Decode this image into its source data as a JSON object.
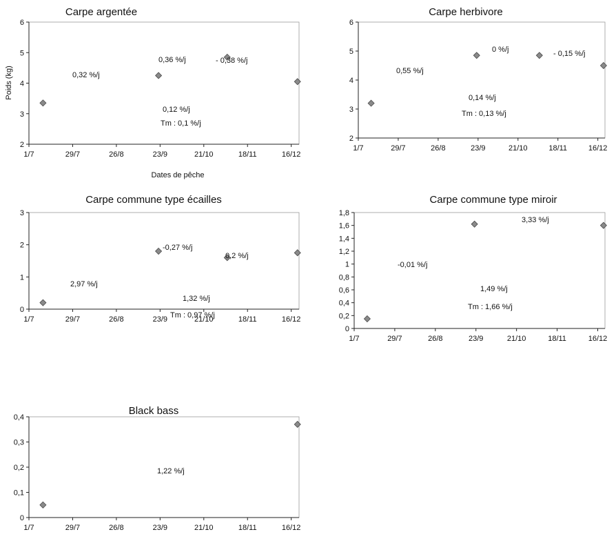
{
  "chart_data": [
    {
      "type": "scatter",
      "title": "Carpe argentée",
      "xlabel": "Dates de pêche",
      "ylabel": "Poids (kg)",
      "x_ticks": [
        "1/7",
        "29/7",
        "26/8",
        "23/9",
        "21/10",
        "18/11",
        "16/12"
      ],
      "y_ticks": [
        "2",
        "3",
        "4",
        "5",
        "6"
      ],
      "ylim": [
        2,
        6
      ],
      "series": [
        {
          "x": [
            "10/7",
            "22/9",
            "5/11",
            "20/12"
          ],
          "y": [
            3.35,
            4.25,
            4.85,
            4.05
          ]
        }
      ],
      "annotations": [
        "0,32 %/j",
        "0,36 %/j",
        "- 0,38 %/j",
        "0,12 %/j",
        "Tm : 0,1 %/j"
      ]
    },
    {
      "type": "scatter",
      "title": "Carpe herbivore",
      "xlabel": "",
      "ylabel": "",
      "x_ticks": [
        "1/7",
        "29/7",
        "26/8",
        "23/9",
        "21/10",
        "18/11",
        "16/12"
      ],
      "y_ticks": [
        "2",
        "3",
        "4",
        "5",
        "6"
      ],
      "ylim": [
        2,
        6
      ],
      "series": [
        {
          "x": [
            "10/7",
            "22/9",
            "5/11",
            "20/12"
          ],
          "y": [
            3.2,
            4.85,
            4.85,
            4.5
          ]
        }
      ],
      "annotations": [
        "0,55 %/j",
        "0 %/j",
        "- 0,15 %/j",
        "0,14 %/j",
        "Tm : 0,13 %/j"
      ]
    },
    {
      "type": "scatter",
      "title": "Carpe commune type écailles",
      "xlabel": "",
      "ylabel": "",
      "x_ticks": [
        "1/7",
        "29/7",
        "26/8",
        "23/9",
        "21/10",
        "18/11",
        "16/12"
      ],
      "y_ticks": [
        "0",
        "1",
        "2",
        "3"
      ],
      "ylim": [
        0,
        3
      ],
      "series": [
        {
          "x": [
            "10/7",
            "22/9",
            "5/11",
            "20/12"
          ],
          "y": [
            0.2,
            1.8,
            1.6,
            1.75
          ]
        }
      ],
      "annotations": [
        "2,97 %/j",
        "-0,27 %/j",
        "0,2 %/j",
        "1,32 %/j",
        "Tm : 0,97 %/j"
      ]
    },
    {
      "type": "scatter",
      "title": "Carpe commune type miroir",
      "xlabel": "",
      "ylabel": "",
      "x_ticks": [
        "1/7",
        "29/7",
        "26/8",
        "23/9",
        "21/10",
        "18/11",
        "16/12"
      ],
      "y_ticks": [
        "0",
        "0,2",
        "0,4",
        "0,6",
        "0,8",
        "1",
        "1,2",
        "1,4",
        "1,6",
        "1,8"
      ],
      "ylim": [
        0,
        1.8
      ],
      "series": [
        {
          "x": [
            "10/7",
            "22/9",
            "20/12"
          ],
          "y": [
            0.15,
            1.62,
            1.6
          ]
        }
      ],
      "annotations": [
        "-0,01 %/j",
        "3,33 %/j",
        "1,49 %/j",
        "Tm : 1,66 %/j"
      ]
    },
    {
      "type": "scatter",
      "title": "Black bass",
      "xlabel": "",
      "ylabel": "",
      "x_ticks": [
        "1/7",
        "29/7",
        "26/8",
        "23/9",
        "21/10",
        "18/11",
        "16/12"
      ],
      "y_ticks": [
        "0",
        "0,1",
        "0,2",
        "0,3",
        "0,4"
      ],
      "ylim": [
        0,
        0.4
      ],
      "series": [
        {
          "x": [
            "10/7",
            "20/12"
          ],
          "y": [
            0.05,
            0.37
          ]
        }
      ],
      "annotations": [
        "1,22 %/j"
      ]
    }
  ]
}
